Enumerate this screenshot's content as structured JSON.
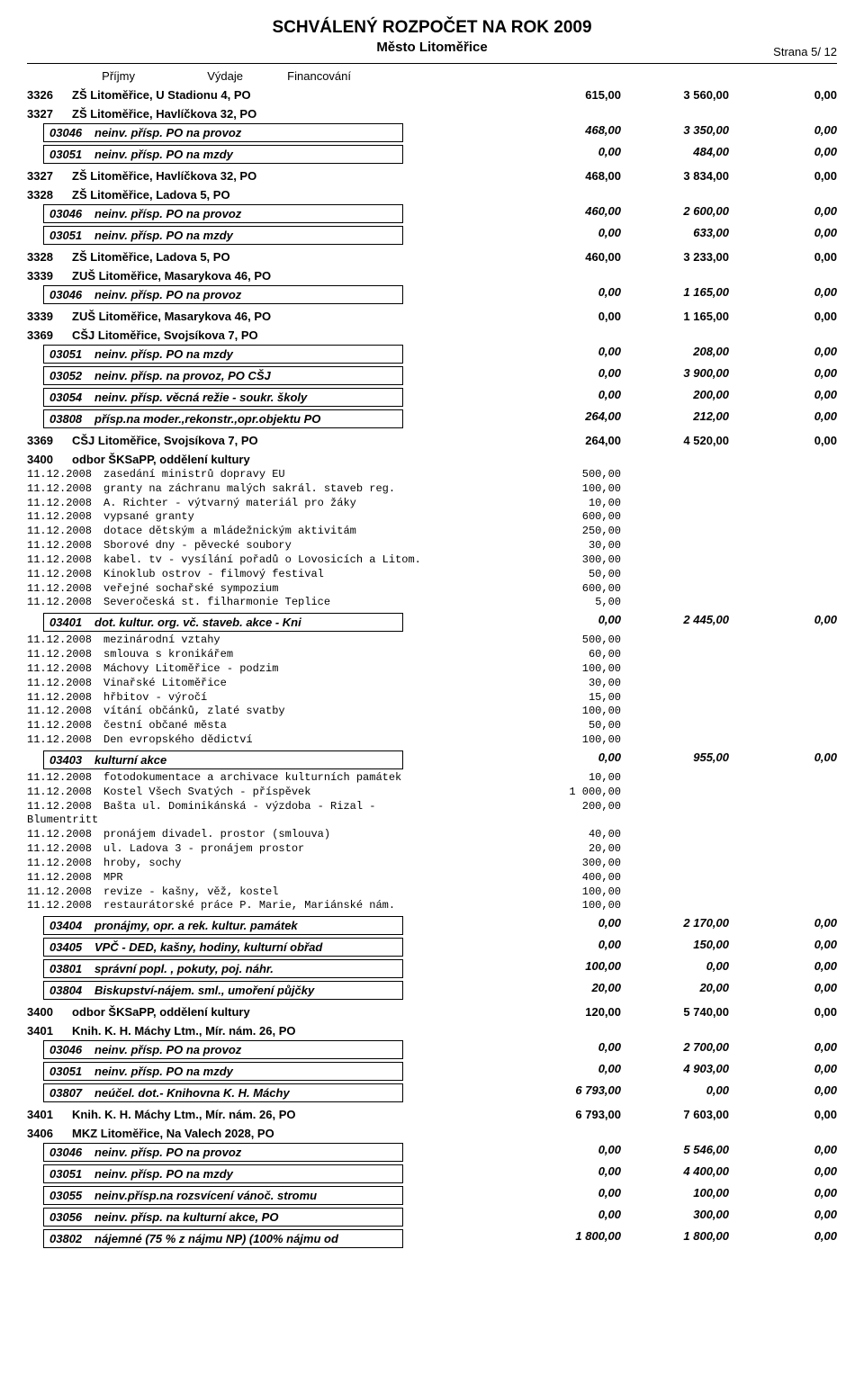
{
  "doc": {
    "title": "SCHVÁLENÝ ROZPOČET NA ROK 2009",
    "subtitle": "Město Litoměřice",
    "page_label": "Strana   5/   12",
    "col_p": "Příjmy",
    "col_v": "Výdaje",
    "col_f": "Financování"
  },
  "blocks": [
    {
      "type": "section",
      "code": "3326",
      "name": "ZŠ Litoměřice, U Stadionu 4, PO",
      "p": "615,00",
      "v": "3 560,00",
      "f": "0,00"
    },
    {
      "type": "section-plain",
      "code": "3327",
      "name": "ZŠ Litoměřice, Havlíčkova 32, PO"
    },
    {
      "type": "box",
      "bcode": "03046",
      "bname": "neinv. přísp. PO na provoz",
      "p": "468,00",
      "v": "3 350,00",
      "f": "0,00"
    },
    {
      "type": "box",
      "bcode": "03051",
      "bname": "neinv. přísp. PO na mzdy",
      "p": "0,00",
      "v": "484,00",
      "f": "0,00"
    },
    {
      "type": "section",
      "code": "3327",
      "name": "ZŠ Litoměřice, Havlíčkova 32, PO",
      "p": "468,00",
      "v": "3 834,00",
      "f": "0,00"
    },
    {
      "type": "section-plain",
      "code": "3328",
      "name": "ZŠ Litoměřice, Ladova 5, PO"
    },
    {
      "type": "box",
      "bcode": "03046",
      "bname": "neinv. přísp. PO na provoz",
      "p": "460,00",
      "v": "2 600,00",
      "f": "0,00"
    },
    {
      "type": "box",
      "bcode": "03051",
      "bname": "neinv. přísp. PO na mzdy",
      "p": "0,00",
      "v": "633,00",
      "f": "0,00"
    },
    {
      "type": "section",
      "code": "3328",
      "name": "ZŠ Litoměřice, Ladova 5, PO",
      "p": "460,00",
      "v": "3 233,00",
      "f": "0,00"
    },
    {
      "type": "section-plain",
      "code": "3339",
      "name": "ZUŠ Litoměřice, Masarykova 46, PO"
    },
    {
      "type": "box",
      "bcode": "03046",
      "bname": "neinv. přísp. PO na provoz",
      "p": "0,00",
      "v": "1 165,00",
      "f": "0,00"
    },
    {
      "type": "section",
      "code": "3339",
      "name": "ZUŠ Litoměřice, Masarykova 46, PO",
      "p": "0,00",
      "v": "1 165,00",
      "f": "0,00"
    },
    {
      "type": "section-plain",
      "code": "3369",
      "name": "CŠJ Litoměřice, Svojsíkova 7, PO"
    },
    {
      "type": "box",
      "bcode": "03051",
      "bname": "neinv. přísp. PO na mzdy",
      "p": "0,00",
      "v": "208,00",
      "f": "0,00"
    },
    {
      "type": "box",
      "bcode": "03052",
      "bname": "neinv. přísp. na provoz, PO CŠJ",
      "p": "0,00",
      "v": "3 900,00",
      "f": "0,00"
    },
    {
      "type": "box",
      "bcode": "03054",
      "bname": "neinv. přísp. věcná režie - soukr. školy",
      "p": "0,00",
      "v": "200,00",
      "f": "0,00"
    },
    {
      "type": "box",
      "bcode": "03808",
      "bname": "přísp.na moder.,rekonstr.,opr.objektu PO",
      "p": "264,00",
      "v": "212,00",
      "f": "0,00"
    },
    {
      "type": "section",
      "code": "3369",
      "name": "CŠJ Litoměřice, Svojsíkova 7, PO",
      "p": "264,00",
      "v": "4 520,00",
      "f": "0,00"
    },
    {
      "type": "section-plain",
      "code": "3400",
      "name": "odbor ŠKSaPP, oddělení kultury"
    },
    {
      "type": "note",
      "date": "11.12.2008",
      "txt": "zasedání ministrů dopravy EU",
      "val": "500,00"
    },
    {
      "type": "note",
      "date": "11.12.2008",
      "txt": "granty na záchranu malých sakrál. staveb reg.",
      "val": "100,00"
    },
    {
      "type": "note",
      "date": "11.12.2008",
      "txt": "A. Richter - výtvarný materiál pro žáky",
      "val": "10,00"
    },
    {
      "type": "note",
      "date": "11.12.2008",
      "txt": "vypsané granty",
      "val": "600,00"
    },
    {
      "type": "note",
      "date": "11.12.2008",
      "txt": "dotace dětským a mládežnickým aktivitám",
      "val": "250,00"
    },
    {
      "type": "note",
      "date": "11.12.2008",
      "txt": "Sborové dny - pěvecké soubory",
      "val": "30,00"
    },
    {
      "type": "note",
      "date": "11.12.2008",
      "txt": "kabel. tv - vysílání pořadů o Lovosicích a Litom.",
      "val": "300,00"
    },
    {
      "type": "note",
      "date": "11.12.2008",
      "txt": "Kinoklub ostrov - filmový festival",
      "val": "50,00"
    },
    {
      "type": "note",
      "date": "11.12.2008",
      "txt": "veřejné sochařské sympozium",
      "val": "600,00"
    },
    {
      "type": "note",
      "date": "11.12.2008",
      "txt": "Severočeská st. filharmonie Teplice",
      "val": "5,00"
    },
    {
      "type": "box",
      "bcode": "03401",
      "bname": "dot. kultur. org. vč. staveb. akce - Kni",
      "p": "0,00",
      "v": "2 445,00",
      "f": "0,00"
    },
    {
      "type": "note",
      "date": "11.12.2008",
      "txt": "mezinárodní vztahy",
      "val": "500,00"
    },
    {
      "type": "note",
      "date": "11.12.2008",
      "txt": "smlouva s kronikářem",
      "val": "60,00"
    },
    {
      "type": "note",
      "date": "11.12.2008",
      "txt": "Máchovy Litoměřice - podzim",
      "val": "100,00"
    },
    {
      "type": "note",
      "date": "11.12.2008",
      "txt": "Vinařské Litoměřice",
      "val": "30,00"
    },
    {
      "type": "note",
      "date": "11.12.2008",
      "txt": "hřbitov - výročí",
      "val": "15,00"
    },
    {
      "type": "note",
      "date": "11.12.2008",
      "txt": "vítání občánků, zlaté svatby",
      "val": "100,00"
    },
    {
      "type": "note",
      "date": "11.12.2008",
      "txt": "čestní občané města",
      "val": "50,00"
    },
    {
      "type": "note",
      "date": "11.12.2008",
      "txt": "Den evropského dědictví",
      "val": "100,00"
    },
    {
      "type": "box",
      "bcode": "03403",
      "bname": "kulturní akce",
      "p": "0,00",
      "v": "955,00",
      "f": "0,00"
    },
    {
      "type": "note",
      "date": "11.12.2008",
      "txt": "fotodokumentace a archivace kulturních památek",
      "val": "10,00"
    },
    {
      "type": "note",
      "date": "11.12.2008",
      "txt": "Kostel Všech Svatých - příspěvek",
      "val": "1 000,00"
    },
    {
      "type": "note-wrap",
      "date": "11.12.2008",
      "txt": "Bašta ul. Dominikánská - výzdoba - Rizal -",
      "val": "200,00"
    },
    {
      "type": "note-cont",
      "txt": "Blumentritt"
    },
    {
      "type": "note",
      "date": "11.12.2008",
      "txt": "pronájem divadel. prostor (smlouva)",
      "val": "40,00"
    },
    {
      "type": "note",
      "date": "11.12.2008",
      "txt": "ul. Ladova 3 - pronájem prostor",
      "val": "20,00"
    },
    {
      "type": "note",
      "date": "11.12.2008",
      "txt": "hroby, sochy",
      "val": "300,00"
    },
    {
      "type": "note",
      "date": "11.12.2008",
      "txt": "MPR",
      "val": "400,00"
    },
    {
      "type": "note",
      "date": "11.12.2008",
      "txt": "revize - kašny, věž, kostel",
      "val": "100,00"
    },
    {
      "type": "note",
      "date": "11.12.2008",
      "txt": "restaurátorské práce P. Marie, Mariánské nám.",
      "val": "100,00"
    },
    {
      "type": "box",
      "bcode": "03404",
      "bname": "pronájmy, opr. a rek. kultur. památek",
      "p": "0,00",
      "v": "2 170,00",
      "f": "0,00"
    },
    {
      "type": "box",
      "bcode": "03405",
      "bname": "VPČ - DED, kašny, hodiny, kulturní obřad",
      "p": "0,00",
      "v": "150,00",
      "f": "0,00"
    },
    {
      "type": "box",
      "bcode": "03801",
      "bname": "správní popl. , pokuty, poj. náhr.",
      "p": "100,00",
      "v": "0,00",
      "f": "0,00"
    },
    {
      "type": "box",
      "bcode": "03804",
      "bname": "Biskupství-nájem. sml., umoření půjčky",
      "p": "20,00",
      "v": "20,00",
      "f": "0,00"
    },
    {
      "type": "section",
      "code": "3400",
      "name": "odbor ŠKSaPP, oddělení kultury",
      "p": "120,00",
      "v": "5 740,00",
      "f": "0,00"
    },
    {
      "type": "section-plain",
      "code": "3401",
      "name": "Knih. K. H. Máchy Ltm., Mír. nám. 26, PO"
    },
    {
      "type": "box",
      "bcode": "03046",
      "bname": "neinv. přísp. PO na provoz",
      "p": "0,00",
      "v": "2 700,00",
      "f": "0,00"
    },
    {
      "type": "box",
      "bcode": "03051",
      "bname": "neinv. přísp. PO na mzdy",
      "p": "0,00",
      "v": "4 903,00",
      "f": "0,00"
    },
    {
      "type": "box",
      "bcode": "03807",
      "bname": "neúčel. dot.- Knihovna K. H. Máchy",
      "p": "6 793,00",
      "v": "0,00",
      "f": "0,00"
    },
    {
      "type": "section",
      "code": "3401",
      "name": "Knih. K. H. Máchy Ltm., Mír. nám. 26, PO",
      "p": "6 793,00",
      "v": "7 603,00",
      "f": "0,00"
    },
    {
      "type": "section-plain",
      "code": "3406",
      "name": "MKZ Litoměřice, Na Valech 2028, PO"
    },
    {
      "type": "box",
      "bcode": "03046",
      "bname": "neinv. přísp. PO na provoz",
      "p": "0,00",
      "v": "5 546,00",
      "f": "0,00"
    },
    {
      "type": "box",
      "bcode": "03051",
      "bname": "neinv. přísp. PO na mzdy",
      "p": "0,00",
      "v": "4 400,00",
      "f": "0,00"
    },
    {
      "type": "box",
      "bcode": "03055",
      "bname": "neinv.přísp.na rozsvícení vánoč. stromu",
      "p": "0,00",
      "v": "100,00",
      "f": "0,00"
    },
    {
      "type": "box",
      "bcode": "03056",
      "bname": "neinv. přísp. na kulturní akce, PO",
      "p": "0,00",
      "v": "300,00",
      "f": "0,00"
    },
    {
      "type": "box",
      "bcode": "03802",
      "bname": "nájemné (75 % z nájmu NP) (100% nájmu od",
      "p": "1 800,00",
      "v": "1 800,00",
      "f": "0,00"
    }
  ]
}
